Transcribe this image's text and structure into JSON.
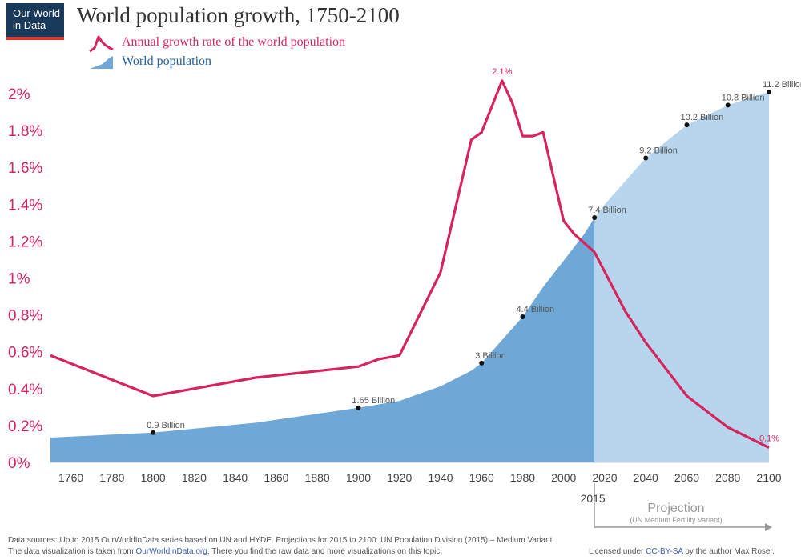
{
  "logo": {
    "line1": "Our World",
    "line2": "in Data"
  },
  "header": {
    "title": "World population growth, 1750-2100"
  },
  "legend": {
    "growth_label": "Annual growth rate of the world population",
    "population_label": "World population"
  },
  "colors": {
    "growth_line": "#d6245d",
    "population_area": "#6fa8d6",
    "projection_area": "#b7d5ec",
    "axis_label": "#d6245d",
    "tick_label": "#444444",
    "projection_text": "#999999"
  },
  "chart_data": {
    "type": "line",
    "x_axis": {
      "min": 1750,
      "max": 2100,
      "ticks": [
        1760,
        1780,
        1800,
        1820,
        1840,
        1860,
        1880,
        1900,
        1920,
        1940,
        1960,
        1980,
        2000,
        2020,
        2040,
        2060,
        2080,
        2100
      ],
      "extra_tick": "2015"
    },
    "y_axis": {
      "min": 0,
      "max": 2.1,
      "tick_values": [
        0,
        0.2,
        0.4,
        0.6,
        0.8,
        1,
        1.2,
        1.4,
        1.6,
        1.8,
        2
      ],
      "tick_labels": [
        "0%",
        "0.2%",
        "0.4%",
        "0.6%",
        "0.8%",
        "1%",
        "1.2%",
        "1.4%",
        "1.6%",
        "1.8%",
        "2%"
      ]
    },
    "growth_series": {
      "name": "Annual growth rate of the world population",
      "points": [
        [
          1750,
          0.58
        ],
        [
          1800,
          0.36
        ],
        [
          1850,
          0.46
        ],
        [
          1900,
          0.52
        ],
        [
          1910,
          0.56
        ],
        [
          1920,
          0.58
        ],
        [
          1940,
          1.03
        ],
        [
          1955,
          1.75
        ],
        [
          1960,
          1.79
        ],
        [
          1970,
          2.07
        ],
        [
          1975,
          1.95
        ],
        [
          1980,
          1.77
        ],
        [
          1985,
          1.77
        ],
        [
          1990,
          1.79
        ],
        [
          2000,
          1.31
        ],
        [
          2005,
          1.24
        ],
        [
          2015,
          1.14
        ],
        [
          2030,
          0.82
        ],
        [
          2040,
          0.65
        ],
        [
          2060,
          0.36
        ],
        [
          2080,
          0.19
        ],
        [
          2100,
          0.08
        ]
      ],
      "labels": [
        {
          "x": 1970,
          "y": 2.07,
          "text": "2.1%"
        },
        {
          "x": 2100,
          "y": 0.08,
          "text": "0.1%"
        }
      ]
    },
    "population_series": {
      "name": "World population",
      "unit": "billion",
      "y_max": 11.8,
      "points": [
        [
          1750,
          0.75
        ],
        [
          1800,
          0.9
        ],
        [
          1850,
          1.2
        ],
        [
          1900,
          1.65
        ],
        [
          1920,
          1.86
        ],
        [
          1940,
          2.3
        ],
        [
          1955,
          2.77
        ],
        [
          1960,
          3.0
        ],
        [
          1970,
          3.7
        ],
        [
          1980,
          4.4
        ],
        [
          1990,
          5.3
        ],
        [
          2000,
          6.1
        ],
        [
          2010,
          6.9
        ],
        [
          2015,
          7.4
        ],
        [
          2020,
          7.8
        ],
        [
          2040,
          9.2
        ],
        [
          2060,
          10.2
        ],
        [
          2080,
          10.8
        ],
        [
          2100,
          11.2
        ]
      ],
      "labels": [
        {
          "x": 1800,
          "y": 0.9,
          "text": "0.9 Billion"
        },
        {
          "x": 1900,
          "y": 1.65,
          "text": "1.65 Billion"
        },
        {
          "x": 1960,
          "y": 3.0,
          "text": "3 Billion"
        },
        {
          "x": 1980,
          "y": 4.4,
          "text": "4.4 Billion"
        },
        {
          "x": 2015,
          "y": 7.4,
          "text": "7.4 Billion"
        },
        {
          "x": 2040,
          "y": 9.2,
          "text": "9.2 Billion"
        },
        {
          "x": 2060,
          "y": 10.2,
          "text": "10.2 Billion"
        },
        {
          "x": 2080,
          "y": 10.8,
          "text": "10.8 Billion"
        },
        {
          "x": 2100,
          "y": 11.2,
          "text": "11.2 Billion"
        }
      ]
    },
    "projection": {
      "start": 2015,
      "label": "Projection",
      "sublabel": "(UN Medium Fertility Variant)"
    }
  },
  "footer": {
    "sources": "Data sources:  Up to 2015 OurWorldInData series based on UN and HYDE. Projections for 2015 to 2100: UN Population Division (2015) – Medium Variant.",
    "viz_prefix": "The data visualization is taken from ",
    "viz_link": "OurWorldInData.org",
    "viz_suffix": ". There you find the raw data and more visualizations on this topic.",
    "license_prefix": "Licensed under ",
    "license_link": "CC-BY-SA",
    "license_suffix": " by the author Max Roser."
  }
}
